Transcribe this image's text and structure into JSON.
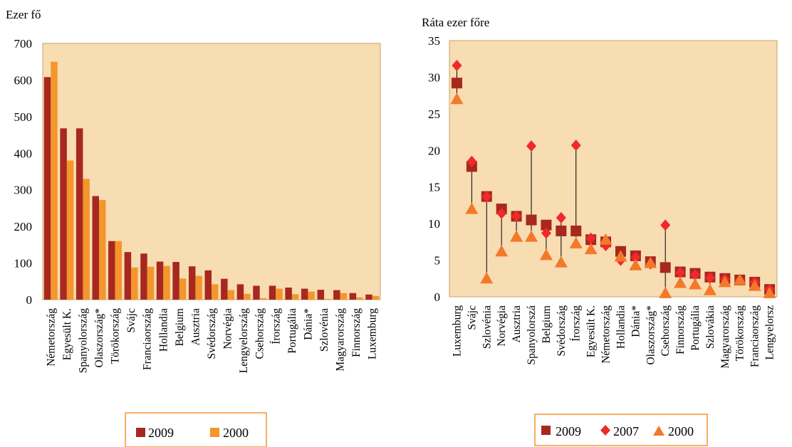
{
  "chart_data": [
    {
      "type": "bar",
      "ylabel": "Ezer fő",
      "ylim": [
        0,
        700
      ],
      "yticks": [
        "0",
        "100",
        "200",
        "300",
        "400",
        "500",
        "600",
        "700"
      ],
      "grid": false,
      "legend_position": "bottom",
      "plot_background": "#f8dcb2",
      "categories": [
        "Németország",
        "Egyesült K.",
        "Spanyolország",
        "Olaszország*",
        "Törökország",
        "Svájc",
        "Franciaország",
        "Hollandia",
        "Belgium",
        "Ausztria",
        "Svédország",
        "Norvégia",
        "Lengyelország",
        "Csehország",
        "Írország",
        "Portugália",
        "Dánia*",
        "Szlovénia",
        "Magyarország",
        "Finnország",
        "Luxemburg"
      ],
      "series": [
        {
          "name": "2009",
          "color": "#a7281e",
          "values": [
            608,
            468,
            468,
            283,
            160,
            130,
            126,
            104,
            103,
            91,
            80,
            57,
            42,
            38,
            38,
            33,
            30,
            27,
            26,
            18,
            14
          ]
        },
        {
          "name": "2000",
          "color": "#f4962c",
          "values": [
            650,
            380,
            330,
            272,
            160,
            88,
            90,
            92,
            58,
            65,
            42,
            26,
            16,
            4,
            30,
            15,
            22,
            2,
            18,
            6,
            10
          ]
        }
      ]
    },
    {
      "type": "scatter",
      "ylabel": "Ráta ezer főre",
      "ylim": [
        0,
        35
      ],
      "yticks": [
        "0",
        "5",
        "10",
        "15",
        "20",
        "25",
        "30",
        "35"
      ],
      "grid": false,
      "legend_position": "bottom",
      "plot_background": "#f8dcb2",
      "categories": [
        "Luxemburg",
        "Svájc",
        "Szlovénia",
        "Norvégia",
        "Ausztria",
        "Spanyolorszá",
        "Belgium",
        "Svédország",
        "Írország",
        "Egyesült K.",
        "Németország",
        "Hollandia",
        "Dánia*",
        "Olaszország*",
        "Csehország",
        "Finnország",
        "Portugália",
        "Szlovákia",
        "Magyarország",
        "Törökország",
        "Franciaország",
        "Lengyelorsz"
      ],
      "series": [
        {
          "name": "2009",
          "marker": "square",
          "color": "#a7281e",
          "values": [
            29.2,
            17.8,
            13.7,
            12.0,
            11.0,
            10.5,
            9.8,
            9.0,
            9.0,
            7.8,
            7.5,
            6.2,
            5.6,
            4.8,
            4.0,
            3.4,
            3.2,
            2.7,
            2.5,
            2.3,
            2.0,
            1.0
          ]
        },
        {
          "name": "2007",
          "marker": "diamond",
          "color": "#ee2a2a",
          "values": [
            31.6,
            18.5,
            13.7,
            11.4,
            11.0,
            20.6,
            8.7,
            10.8,
            20.7,
            8.0,
            7.0,
            5.0,
            5.4,
            4.5,
            9.8,
            3.3,
            3.0,
            2.6,
            2.4,
            2.3,
            2.0,
            1.0
          ]
        },
        {
          "name": "2000",
          "marker": "triangle",
          "color": "#f4782a",
          "values": [
            27.0,
            12.0,
            2.5,
            6.2,
            8.2,
            8.2,
            5.7,
            4.7,
            7.3,
            6.5,
            7.8,
            5.5,
            4.3,
            4.6,
            0.5,
            1.9,
            1.7,
            0.9,
            2.0,
            2.3,
            1.5,
            0.5
          ]
        }
      ]
    }
  ]
}
